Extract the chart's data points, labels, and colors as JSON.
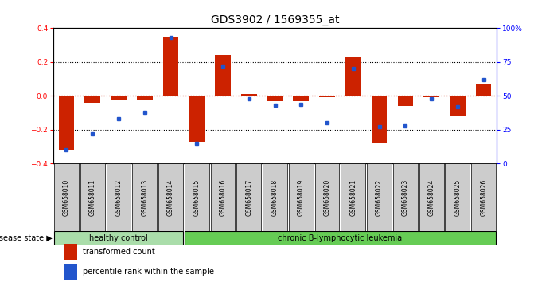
{
  "title": "GDS3902 / 1569355_at",
  "samples": [
    "GSM658010",
    "GSM658011",
    "GSM658012",
    "GSM658013",
    "GSM658014",
    "GSM658015",
    "GSM658016",
    "GSM658017",
    "GSM658018",
    "GSM658019",
    "GSM658020",
    "GSM658021",
    "GSM658022",
    "GSM658023",
    "GSM658024",
    "GSM658025",
    "GSM658026"
  ],
  "red_bars": [
    -0.32,
    -0.04,
    -0.02,
    -0.02,
    0.35,
    -0.27,
    0.24,
    0.01,
    -0.03,
    -0.03,
    -0.01,
    0.23,
    -0.28,
    -0.06,
    -0.01,
    -0.12,
    0.07
  ],
  "blue_squares": [
    10,
    22,
    33,
    38,
    93,
    15,
    72,
    48,
    43,
    44,
    30,
    70,
    27,
    28,
    48,
    42,
    62
  ],
  "ylim_left": [
    -0.4,
    0.4
  ],
  "ylim_right": [
    0,
    100
  ],
  "yticks_left": [
    -0.4,
    -0.2,
    0.0,
    0.2,
    0.4
  ],
  "yticks_right": [
    0,
    25,
    50,
    75,
    100
  ],
  "ytick_labels_right": [
    "0",
    "25",
    "50",
    "75",
    "100%"
  ],
  "healthy_control_count": 5,
  "healthy_color": "#aaddaa",
  "leukemia_color": "#66cc55",
  "label_box_color": "#cccccc",
  "bar_color_red": "#cc2200",
  "bar_color_blue": "#2255cc",
  "dotted_line_color_red": "#cc2200",
  "dotted_line_color_black": "#000000",
  "group_label_healthy": "healthy control",
  "group_label_leukemia": "chronic B-lymphocytic leukemia",
  "disease_state_label": "disease state",
  "legend_red": "transformed count",
  "legend_blue": "percentile rank within the sample",
  "title_fontsize": 10,
  "axis_fontsize": 7,
  "tick_label_fontsize": 6.5,
  "sample_label_fontsize": 5.5,
  "group_fontsize": 7,
  "legend_fontsize": 7
}
